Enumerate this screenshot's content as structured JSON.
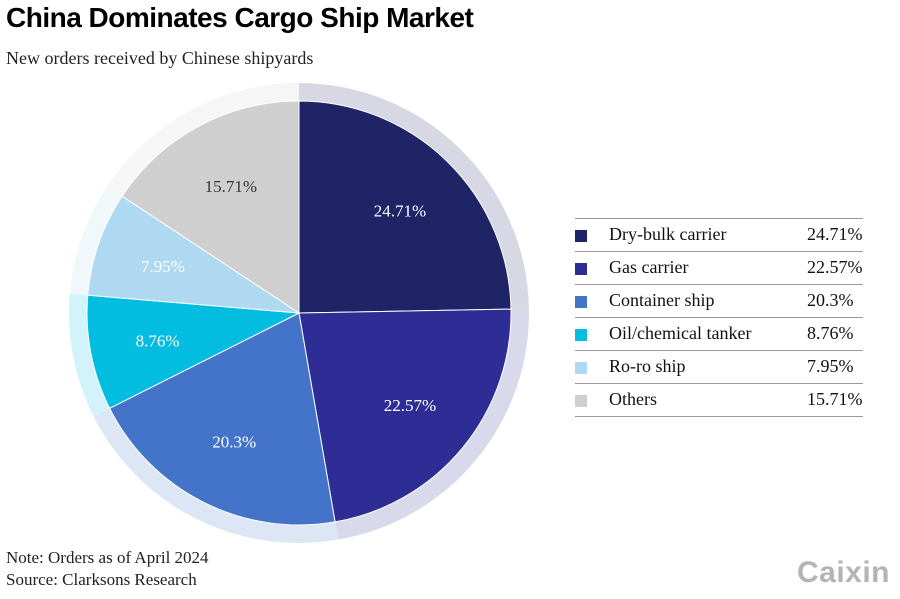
{
  "title": "China Dominates Cargo Ship Market",
  "subtitle": "New orders received by Chinese shipyards",
  "note": "Note: Orders as of April 2024",
  "source": "Source: Clarksons Research",
  "brand": "Caixin",
  "chart_data": {
    "type": "pie",
    "title": "China Dominates Cargo Ship Market",
    "subtitle": "New orders received by Chinese shipyards",
    "legend_position": "right",
    "start_angle": "12 o'clock, clockwise",
    "slices": [
      {
        "label": "Dry-bulk carrier",
        "value": 24.71,
        "display": "24.71%",
        "color": "#1f2466",
        "label_color": "#ffffff"
      },
      {
        "label": "Gas carrier",
        "value": 22.57,
        "display": "22.57%",
        "color": "#2e2c95",
        "label_color": "#ffffff"
      },
      {
        "label": "Container ship",
        "value": 20.3,
        "display": "20.3%",
        "color": "#4474c9",
        "label_color": "#ffffff"
      },
      {
        "label": "Oil/chemical tanker",
        "value": 8.76,
        "display": "8.76%",
        "color": "#02bde0",
        "label_color": "#ffffff"
      },
      {
        "label": "Ro-ro ship",
        "value": 7.95,
        "display": "7.95%",
        "color": "#afd9f0",
        "label_color": "#ffffff"
      },
      {
        "label": "Others",
        "value": 15.71,
        "display": "15.71%",
        "color": "#cfcfcf",
        "label_color": "#333333"
      }
    ]
  }
}
